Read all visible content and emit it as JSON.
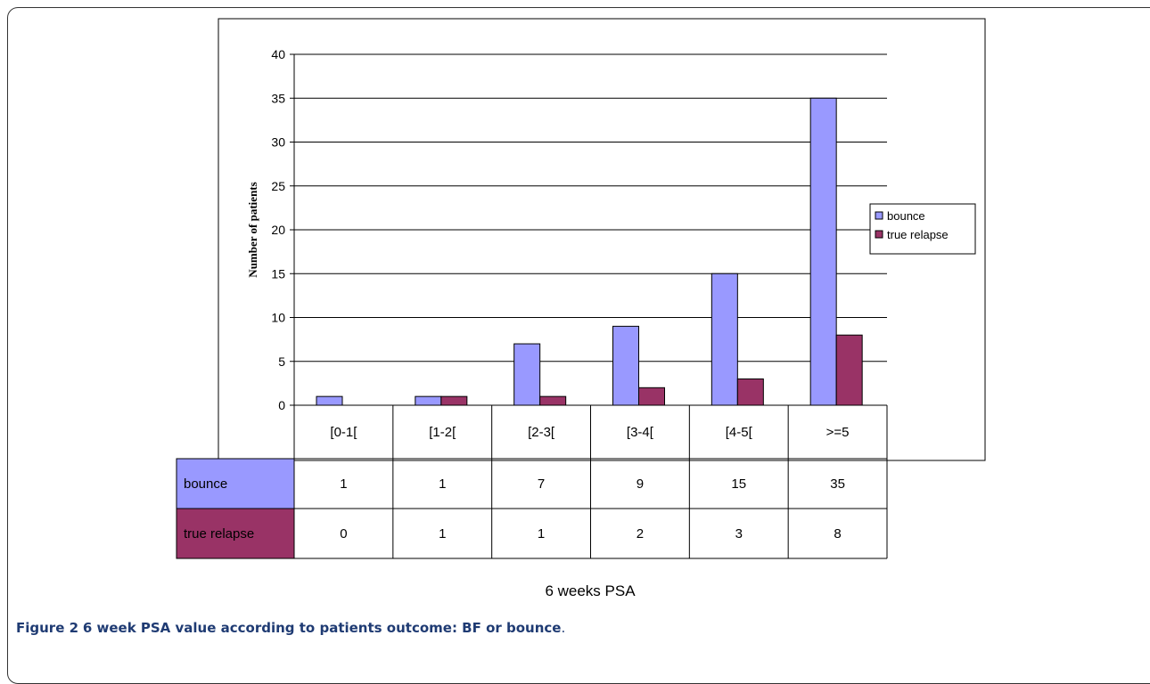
{
  "chart_data": {
    "type": "bar",
    "title": "",
    "xlabel": "6 weeks PSA",
    "ylabel": "Number of patients",
    "ylim": [
      0,
      40
    ],
    "yticks": [
      0,
      5,
      10,
      15,
      20,
      25,
      30,
      35,
      40
    ],
    "categories": [
      "[0-1[",
      "[1-2[",
      "[2-3[",
      "[3-4[",
      "[4-5[",
      ">=5"
    ],
    "series": [
      {
        "name": "bounce",
        "values": [
          1,
          1,
          7,
          9,
          15,
          35
        ],
        "color": "#9999ff"
      },
      {
        "name": "true relapse",
        "values": [
          0,
          1,
          1,
          2,
          3,
          8
        ],
        "color": "#993366"
      }
    ],
    "grid": true,
    "legend_position": "right",
    "data_table": true
  },
  "caption": {
    "label": "Figure 2",
    "text": "6 week PSA value according to patients outcome: BF or bounce",
    "end": "."
  }
}
